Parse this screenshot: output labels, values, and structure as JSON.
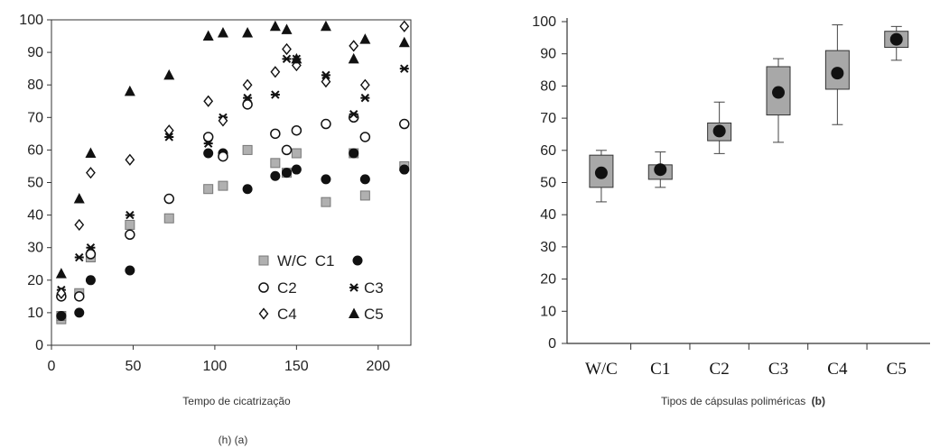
{
  "caption_a": "(h) (a)",
  "chart_data": [
    {
      "type": "scatter",
      "panel": "(a)",
      "xlabel": "Tempo de cicatrização",
      "ylabel": "",
      "xlim": [
        0,
        220
      ],
      "ylim": [
        0,
        100
      ],
      "xticks": [
        "0",
        "50",
        "100",
        "150",
        "200"
      ],
      "yticks": [
        "0",
        "10",
        "20",
        "30",
        "40",
        "50",
        "60",
        "70",
        "80",
        "90",
        "100"
      ],
      "legend_position": "bottom-right",
      "series": [
        {
          "name": "W/C",
          "marker": "gray-square",
          "x": [
            6,
            6,
            17,
            24,
            48,
            72,
            96,
            105,
            120,
            137,
            144,
            150,
            168,
            185,
            192,
            216
          ],
          "y": [
            8,
            9,
            16,
            27,
            37,
            39,
            48,
            49,
            60,
            56,
            53,
            59,
            44,
            59,
            46,
            55
          ]
        },
        {
          "name": "C1",
          "marker": "black-circle",
          "x": [
            6,
            17,
            24,
            48,
            96,
            105,
            120,
            137,
            144,
            150,
            168,
            185,
            192,
            216
          ],
          "y": [
            9,
            10,
            20,
            23,
            59,
            59,
            48,
            52,
            53,
            54,
            51,
            59,
            51,
            54
          ]
        },
        {
          "name": "C2",
          "marker": "open-circle",
          "x": [
            6,
            17,
            24,
            48,
            72,
            96,
            105,
            120,
            137,
            144,
            150,
            168,
            185,
            192,
            216
          ],
          "y": [
            15,
            15,
            28,
            34,
            45,
            64,
            58,
            74,
            65,
            60,
            66,
            68,
            70,
            64,
            68
          ]
        },
        {
          "name": "C3",
          "marker": "star",
          "x": [
            6,
            17,
            24,
            48,
            72,
            96,
            105,
            120,
            137,
            144,
            150,
            168,
            185,
            192,
            216
          ],
          "y": [
            17,
            27,
            30,
            40,
            64,
            62,
            70,
            76,
            77,
            88,
            88,
            83,
            71,
            76,
            85
          ]
        },
        {
          "name": "C4",
          "marker": "open-diamond",
          "x": [
            6,
            17,
            24,
            48,
            72,
            96,
            105,
            120,
            137,
            144,
            150,
            168,
            185,
            192,
            216
          ],
          "y": [
            16,
            37,
            53,
            57,
            66,
            75,
            69,
            80,
            84,
            91,
            86,
            81,
            92,
            80,
            98
          ]
        },
        {
          "name": "C5",
          "marker": "black-triangle",
          "x": [
            6,
            17,
            24,
            48,
            72,
            96,
            105,
            120,
            137,
            144,
            150,
            168,
            185,
            192,
            216
          ],
          "y": [
            22,
            45,
            59,
            78,
            83,
            95,
            96,
            96,
            98,
            97,
            88,
            98,
            88,
            94,
            93
          ]
        }
      ]
    },
    {
      "type": "box",
      "panel": "(b)",
      "xlabel": "Tipos de cápsulas poliméricas",
      "xlabel_suffix": "(b)",
      "ylabel": "",
      "ylim": [
        0,
        100
      ],
      "yticks": [
        "0",
        "10",
        "20",
        "30",
        "40",
        "50",
        "60",
        "70",
        "80",
        "90",
        "100"
      ],
      "categories": [
        "W/C",
        "C1",
        "C2",
        "C3",
        "C4",
        "C5"
      ],
      "boxes": [
        {
          "whisker_low": 44,
          "q1": 48.5,
          "median": 53,
          "q3": 58.5,
          "whisker_high": 60
        },
        {
          "whisker_low": 48.5,
          "q1": 51,
          "median": 54,
          "q3": 55.5,
          "whisker_high": 59.5
        },
        {
          "whisker_low": 59,
          "q1": 63,
          "median": 66,
          "q3": 68.5,
          "whisker_high": 75
        },
        {
          "whisker_low": 62.5,
          "q1": 71,
          "median": 78,
          "q3": 86,
          "whisker_high": 88.5
        },
        {
          "whisker_low": 68,
          "q1": 79,
          "median": 84,
          "q3": 91,
          "whisker_high": 99
        },
        {
          "whisker_low": 88,
          "q1": 92,
          "median": 94.5,
          "q3": 97,
          "whisker_high": 98.5
        }
      ]
    }
  ]
}
